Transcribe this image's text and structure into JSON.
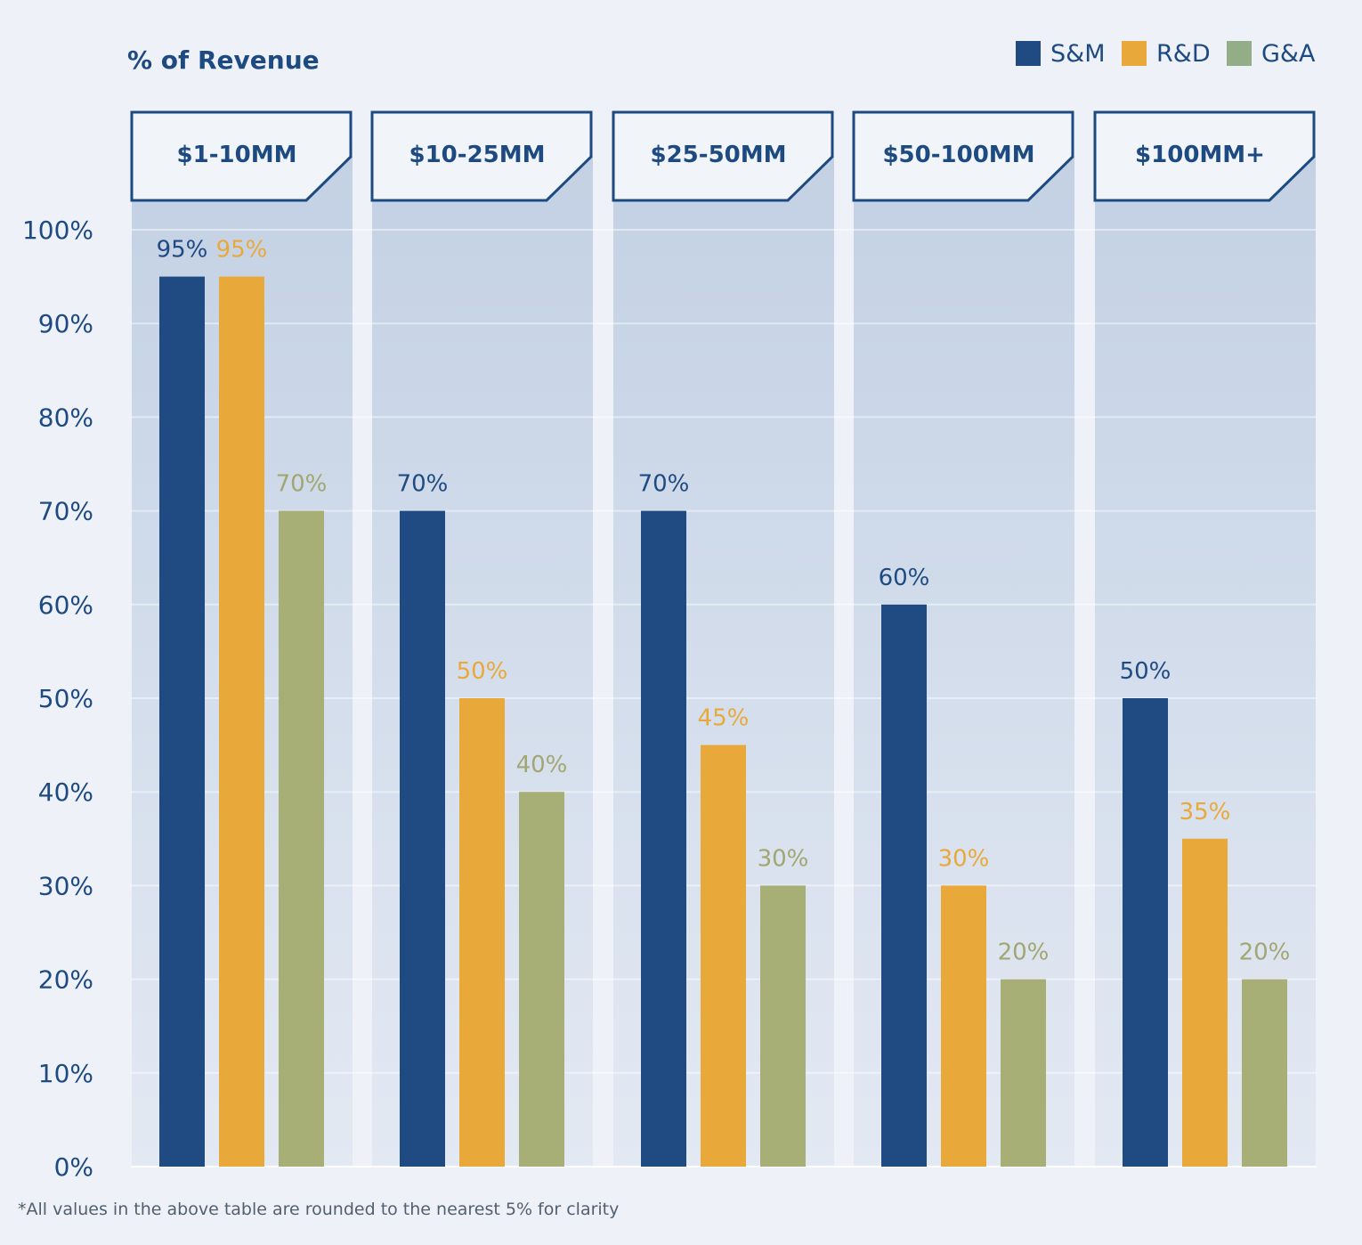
{
  "chart_data": {
    "type": "bar",
    "ylabel": "% of Revenue",
    "ylim": [
      0,
      100
    ],
    "yticks": [
      "0%",
      "10%",
      "20%",
      "30%",
      "40%",
      "50%",
      "60%",
      "70%",
      "80%",
      "90%",
      "100%"
    ],
    "categories": [
      "$1-10MM",
      "$10-25MM",
      "$25-50MM",
      "$50-100MM",
      "$100MM+"
    ],
    "series": [
      {
        "name": "S&M",
        "color": "#1f4a82",
        "values": [
          95,
          70,
          70,
          60,
          50
        ],
        "labels": [
          "95%",
          "70%",
          "70%",
          "60%",
          "50%"
        ]
      },
      {
        "name": "R&D",
        "color": "#e9a93a",
        "values": [
          95,
          50,
          45,
          30,
          35
        ],
        "labels": [
          "95%",
          "50%",
          "45%",
          "30%",
          "35%"
        ]
      },
      {
        "name": "G&A",
        "color": "#a8af76",
        "values": [
          70,
          40,
          30,
          20,
          20
        ],
        "labels": [
          "70%",
          "40%",
          "30%",
          "20%",
          "20%"
        ]
      }
    ],
    "legend_position": "top-right",
    "grid": true,
    "footnote": "*All values in the above table are rounded to the nearest 5% for clarity"
  },
  "colors": {
    "background": "#eef2f8",
    "panel_top": "#c3d1e4",
    "panel_bottom": "#e3e9f3",
    "accent": "#1e4a82",
    "legend_ga": "#93ad88",
    "ga_label": "#a1a672"
  }
}
